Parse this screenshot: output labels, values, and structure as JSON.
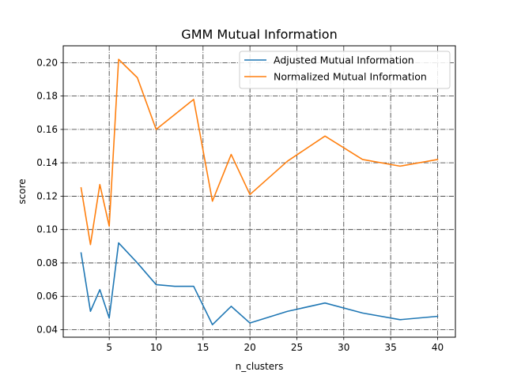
{
  "chart_data": {
    "type": "line",
    "title": "GMM Mutual Information",
    "xlabel": "n_clusters",
    "ylabel": "score",
    "xlim": [
      0.1,
      41.9
    ],
    "ylim": [
      0.0355,
      0.2101
    ],
    "x_ticks": [
      5,
      10,
      15,
      20,
      25,
      30,
      35,
      40
    ],
    "x_tick_labels": [
      "5",
      "10",
      "15",
      "20",
      "25",
      "30",
      "35",
      "40"
    ],
    "y_ticks": [
      0.04,
      0.06,
      0.08,
      0.1,
      0.12,
      0.14,
      0.16,
      0.18,
      0.2
    ],
    "y_tick_labels": [
      "0.04",
      "0.06",
      "0.08",
      "0.10",
      "0.12",
      "0.14",
      "0.16",
      "0.18",
      "0.20"
    ],
    "grid": true,
    "grid_style": "dashdot",
    "legend_position": "top-right",
    "x": [
      2,
      3,
      4,
      5,
      6,
      8,
      10,
      12,
      14,
      16,
      18,
      20,
      24,
      28,
      32,
      36,
      40
    ],
    "series": [
      {
        "name": "Adjusted Mutual Information",
        "color": "#1f77b4",
        "values": [
          0.086,
          0.051,
          0.064,
          0.047,
          0.092,
          0.08,
          0.067,
          0.066,
          0.066,
          0.043,
          0.054,
          0.044,
          0.051,
          0.056,
          0.05,
          0.046,
          0.048
        ]
      },
      {
        "name": "Normalized Mutual Information",
        "color": "#ff7f0e",
        "values": [
          0.125,
          0.091,
          0.127,
          0.102,
          0.202,
          0.191,
          0.16,
          0.169,
          0.178,
          0.117,
          0.145,
          0.121,
          0.141,
          0.156,
          0.142,
          0.138,
          0.142
        ]
      }
    ]
  }
}
